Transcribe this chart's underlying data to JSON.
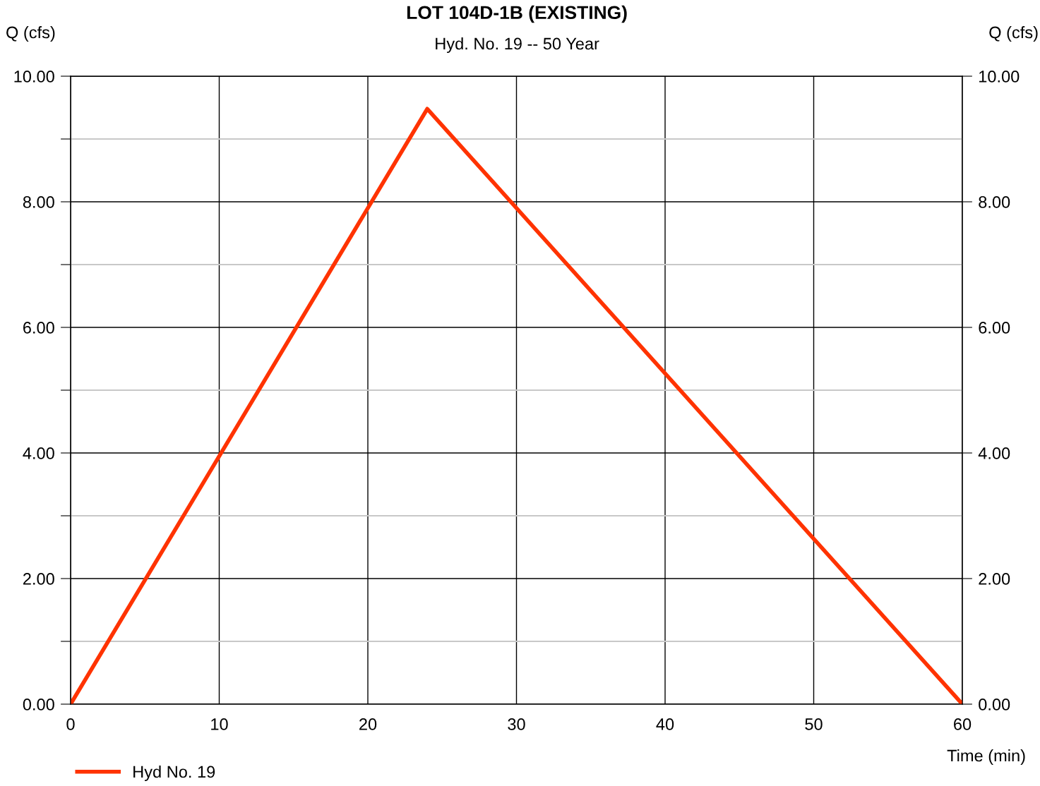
{
  "chart_data": {
    "type": "line",
    "title": "LOT 104D-1B (EXISTING)",
    "subtitle": "Hyd. No. 19 -- 50 Year",
    "xlabel": "Time (min)",
    "ylabel": "Q (cfs)",
    "y2label": "Q (cfs)",
    "series": [
      {
        "name": "Hyd No. 19",
        "color": "#ff3300",
        "x": [
          0,
          24,
          60
        ],
        "values": [
          0,
          9.48,
          0
        ]
      }
    ],
    "xlim": [
      0,
      60
    ],
    "xticks": [
      0,
      10,
      20,
      30,
      40,
      50,
      60
    ],
    "ylim": [
      0,
      10
    ],
    "yticks": [
      {
        "value": 0,
        "label": "0.00"
      },
      {
        "value": 1,
        "label": null
      },
      {
        "value": 2,
        "label": "2.00"
      },
      {
        "value": 3,
        "label": null
      },
      {
        "value": 4,
        "label": "4.00"
      },
      {
        "value": 5,
        "label": null
      },
      {
        "value": 6,
        "label": "6.00"
      },
      {
        "value": 7,
        "label": null
      },
      {
        "value": 8,
        "label": "8.00"
      },
      {
        "value": 9,
        "label": null
      },
      {
        "value": 10,
        "label": "10.00"
      }
    ],
    "y2lim": [
      0,
      10
    ],
    "y2ticks": [
      {
        "value": 0,
        "label": "0.00"
      },
      {
        "value": 2,
        "label": "2.00"
      },
      {
        "value": 4,
        "label": "4.00"
      },
      {
        "value": 6,
        "label": "6.00"
      },
      {
        "value": 8,
        "label": "8.00"
      },
      {
        "value": 10,
        "label": "10.00"
      }
    ],
    "grid": true,
    "legend": "bottom left",
    "marker": "none",
    "line_style": "solid"
  }
}
